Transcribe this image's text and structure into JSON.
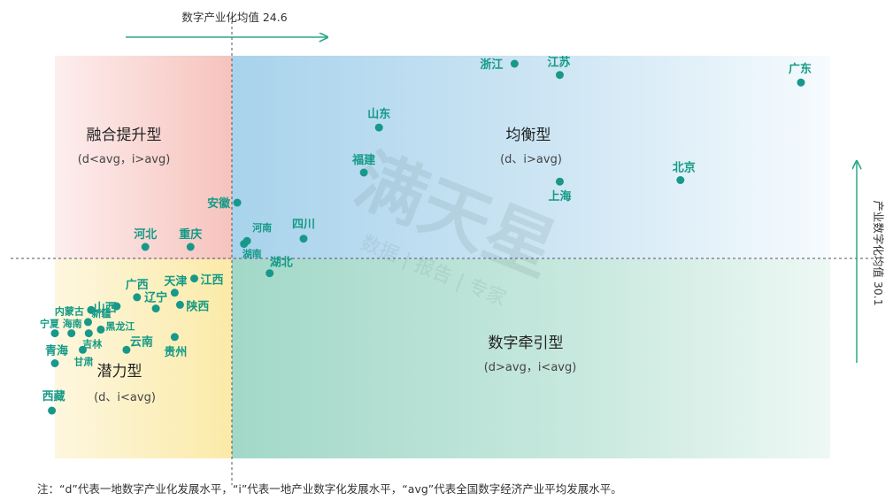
{
  "chart_data": {
    "type": "scatter",
    "title": "",
    "xlabel": "",
    "ylabel": "",
    "x_avg": {
      "label": "数字产业化均值 24.6",
      "value": 24.6
    },
    "y_avg": {
      "label": "产业数字化均值 30.1",
      "value": 30.1
    },
    "quadrants": [
      {
        "id": "top-left",
        "name": "融合提升型",
        "condition": "(d<avg，i>avg)"
      },
      {
        "id": "top-right",
        "name": "均衡型",
        "condition": "(d、i>avg)"
      },
      {
        "id": "bottom-left",
        "name": "潜力型",
        "condition": "(d、i<avg)"
      },
      {
        "id": "bottom-right",
        "name": "数字牵引型",
        "condition": "(d>avg，i<avg)"
      }
    ],
    "points": [
      {
        "name": "广东",
        "x": 99,
        "y": 56
      },
      {
        "name": "浙江",
        "x": 61,
        "y": 58.5
      },
      {
        "name": "江苏",
        "x": 67,
        "y": 57
      },
      {
        "name": "山东",
        "x": 43,
        "y": 50
      },
      {
        "name": "福建",
        "x": 41,
        "y": 44
      },
      {
        "name": "北京",
        "x": 83,
        "y": 43
      },
      {
        "name": "上海",
        "x": 67,
        "y": 42.8
      },
      {
        "name": "安徽",
        "x": 24.2,
        "y": 40
      },
      {
        "name": "四川",
        "x": 33,
        "y": 35.2
      },
      {
        "name": "河南",
        "x": 25.5,
        "y": 34.9
      },
      {
        "name": "湖南",
        "x": 25.1,
        "y": 34.5
      },
      {
        "name": "湖北",
        "x": 28.5,
        "y": 30.6
      },
      {
        "name": "河北",
        "x": 12,
        "y": 34.1
      },
      {
        "name": "重庆",
        "x": 18,
        "y": 34.1
      },
      {
        "name": "江西",
        "x": 18.5,
        "y": 29.9
      },
      {
        "name": "天津",
        "x": 15.9,
        "y": 28
      },
      {
        "name": "广西",
        "x": 10.9,
        "y": 27.4
      },
      {
        "name": "山西",
        "x": 8.2,
        "y": 26.2
      },
      {
        "name": "辽宁",
        "x": 13.4,
        "y": 25.9
      },
      {
        "name": "陕西",
        "x": 16.6,
        "y": 26.4
      },
      {
        "name": "内蒙古",
        "x": 4.8,
        "y": 25.7
      },
      {
        "name": "新疆",
        "x": 4.4,
        "y": 24.1
      },
      {
        "name": "宁夏",
        "x": 0,
        "y": 22.6
      },
      {
        "name": "海南",
        "x": 2.2,
        "y": 22.6
      },
      {
        "name": "黑龙江",
        "x": 6.1,
        "y": 23.1
      },
      {
        "name": "吉林",
        "x": 4.5,
        "y": 22.6
      },
      {
        "name": "云南",
        "x": 9.5,
        "y": 20.4
      },
      {
        "name": "贵州",
        "x": 15.9,
        "y": 22.1
      },
      {
        "name": "甘肃",
        "x": 3.7,
        "y": 20.4
      },
      {
        "name": "青海",
        "x": 0,
        "y": 18.6
      },
      {
        "name": "西藏",
        "x": -0.4,
        "y": 12.3
      }
    ]
  },
  "watermark": {
    "brand": "满天星",
    "tagline": "数据 | 报告 | 专家"
  },
  "note": "注：“d”代表一地数字产业化发展水平，“i”代表一地产业数字化发展水平，“avg”代表全国数字经济产业平均发展水平。",
  "colors": {
    "point": "#17988a",
    "label": "#159a86",
    "quad_top_left": "#f7c4c0",
    "quad_top_right": "#b3d9ee",
    "quad_bottom_left": "#fbedb5",
    "quad_bottom_right": "#a9dccd",
    "arrow": "#2aa889"
  }
}
